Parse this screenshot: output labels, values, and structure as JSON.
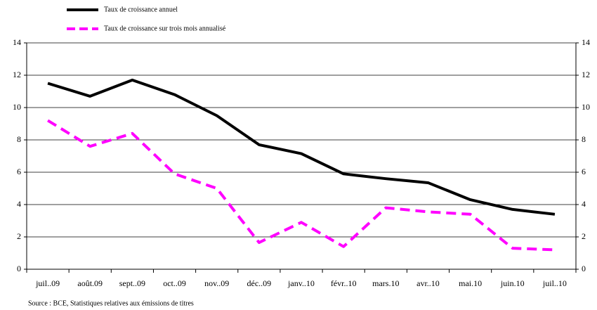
{
  "chart_data": {
    "type": "line",
    "categories": [
      "juil..09",
      "août.09",
      "sept..09",
      "oct..09",
      "nov..09",
      "déc..09",
      "janv..10",
      "févr..10",
      "mars.10",
      "avr..10",
      "mai.10",
      "juin.10",
      "juil..10"
    ],
    "series": [
      {
        "name": "Taux de croissance annuel",
        "color": "#000000",
        "dash": false,
        "values": [
          11.5,
          10.7,
          11.7,
          10.8,
          9.5,
          7.7,
          7.15,
          5.9,
          5.6,
          5.35,
          4.3,
          3.7,
          3.4
        ]
      },
      {
        "name": "Taux de croissance sur trois mois annualisé",
        "color": "#ff00ff",
        "dash": true,
        "values": [
          9.2,
          7.6,
          8.4,
          5.9,
          5.0,
          1.65,
          2.9,
          1.4,
          3.8,
          3.55,
          3.4,
          1.3,
          1.2
        ]
      }
    ],
    "ylim": [
      0,
      14
    ],
    "yticks": [
      0,
      2,
      4,
      6,
      8,
      10,
      12,
      14
    ],
    "y2lim": [
      0,
      14
    ],
    "y2ticks": [
      0,
      2,
      4,
      6,
      8,
      10,
      12,
      14
    ],
    "grid": true,
    "source": "Source : BCE, Statistiques relatives aux émissions de titres"
  }
}
